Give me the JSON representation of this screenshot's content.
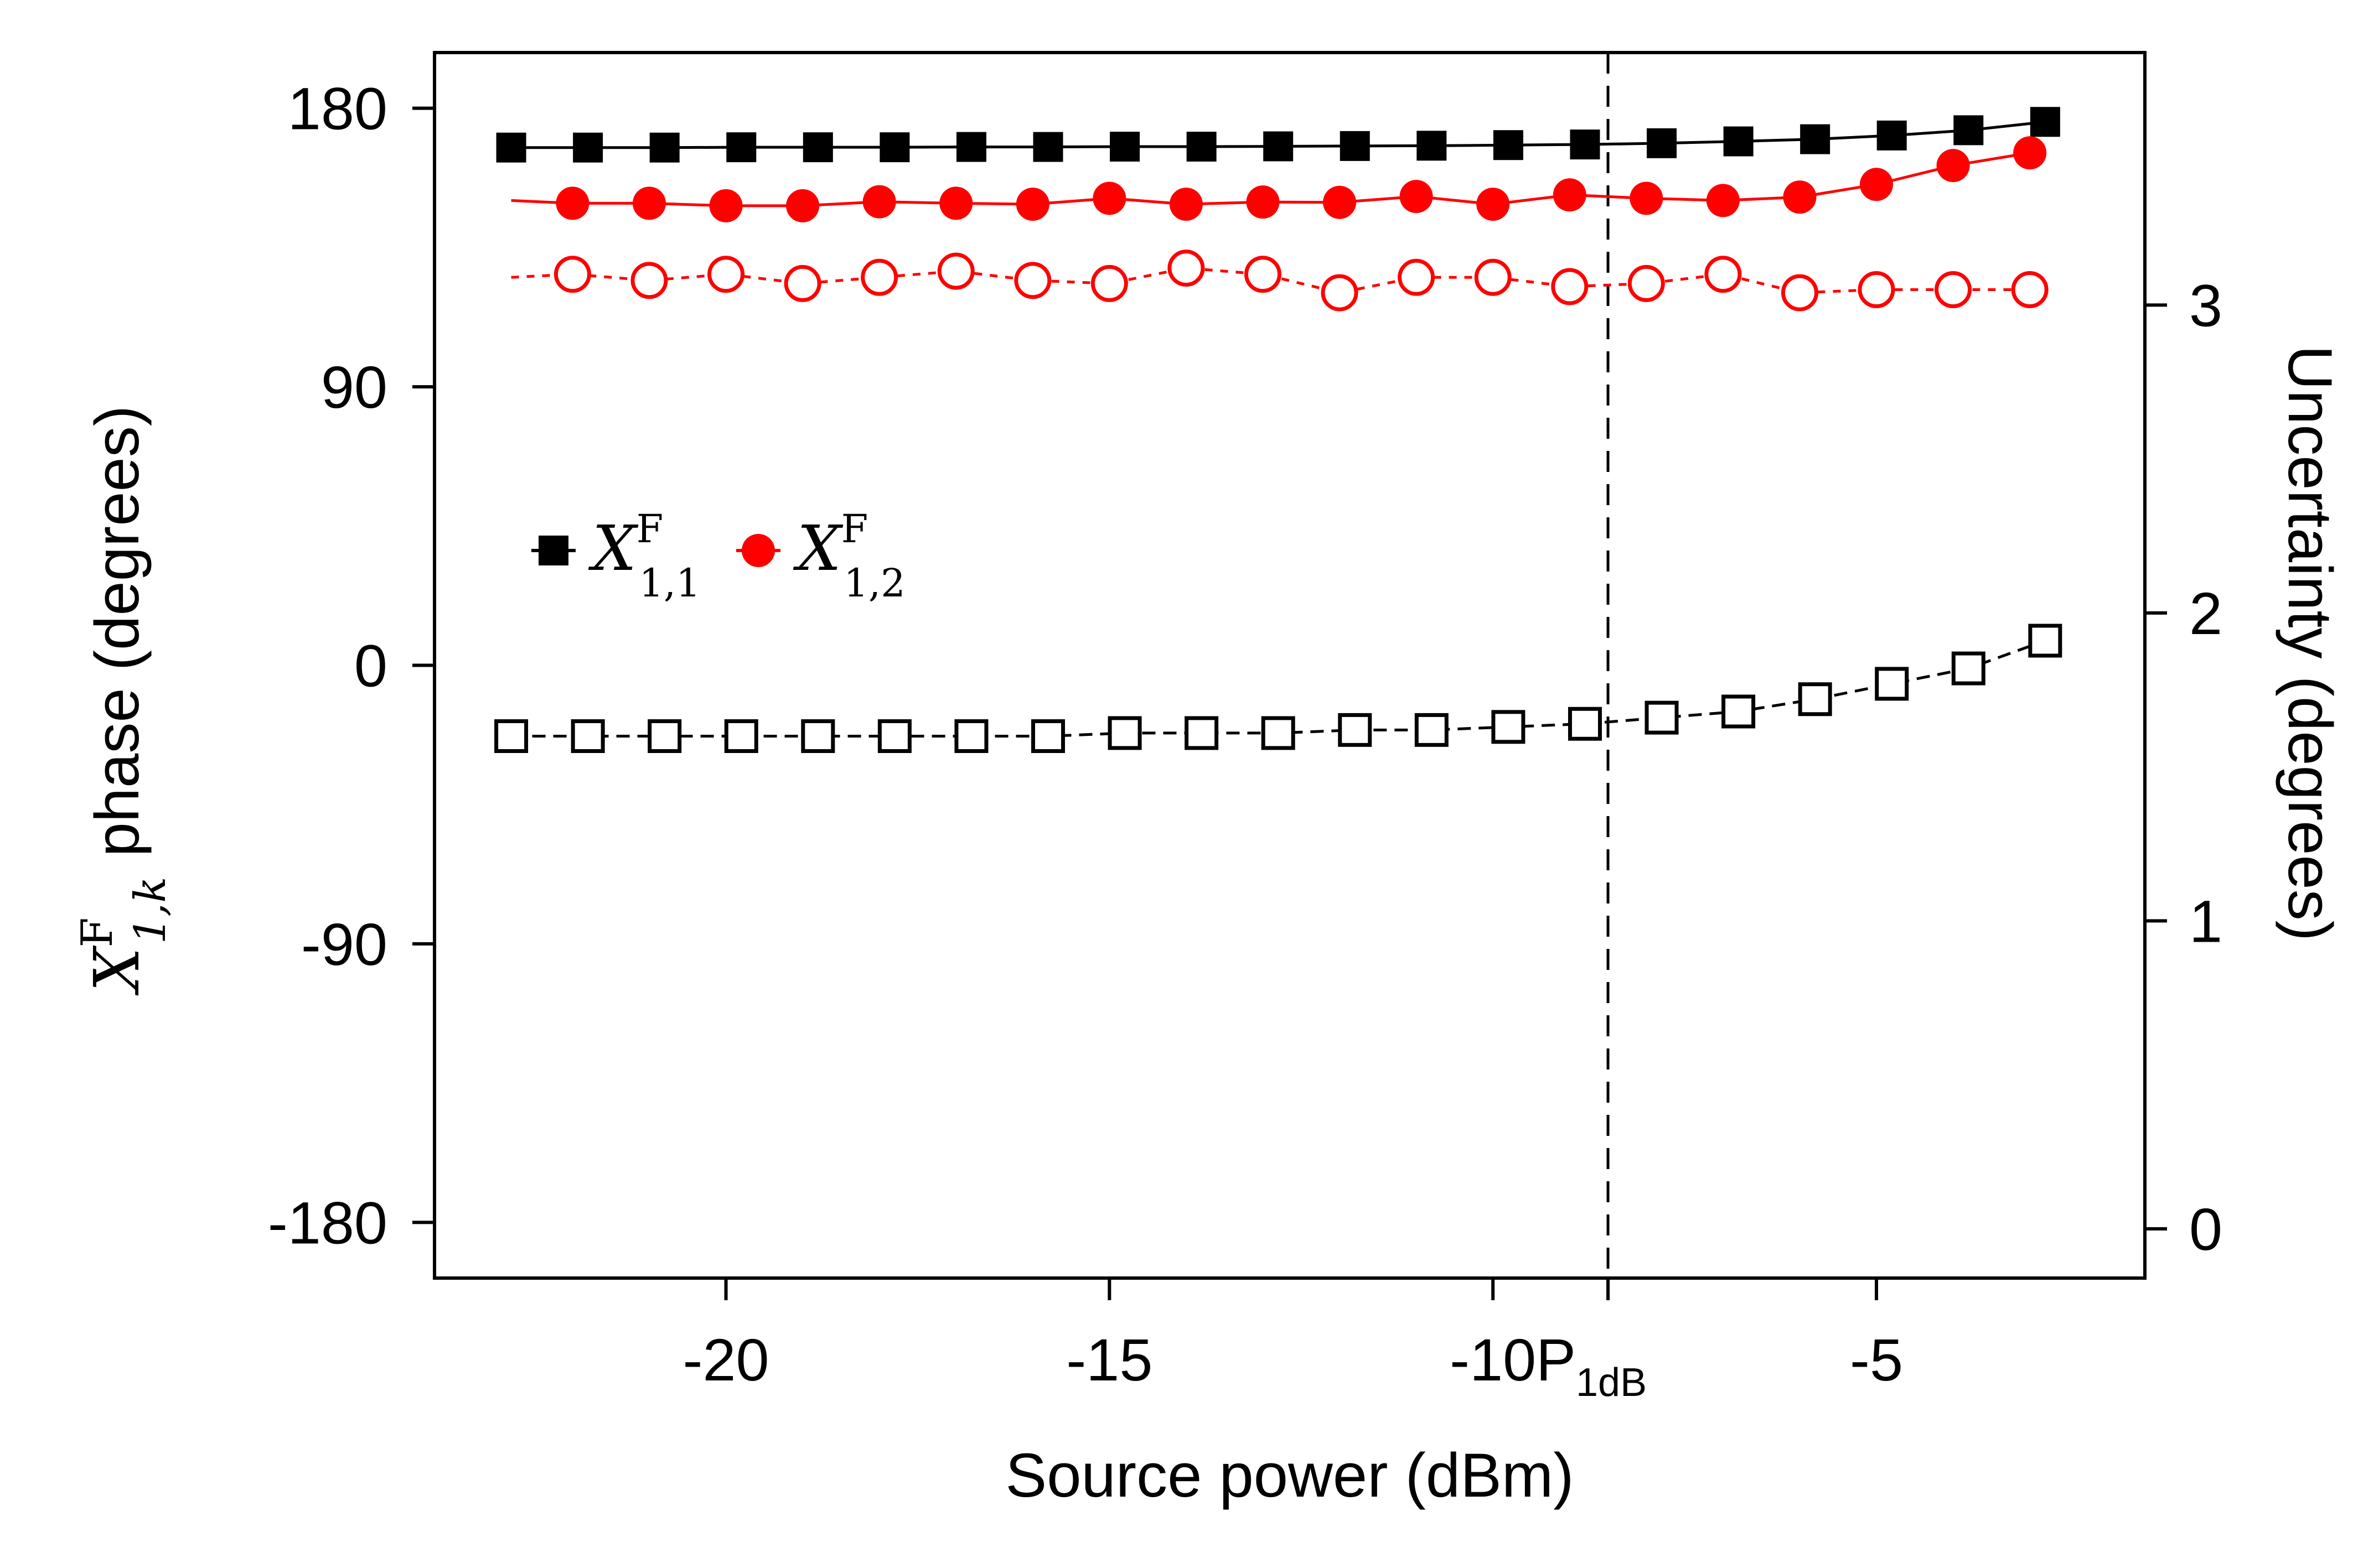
{
  "chart_data": {
    "type": "line",
    "x_label": "Source power (dBm)",
    "y_label_left": {
      "symbol": "X",
      "sup": "F",
      "sub": "1,k",
      "text": "phase (degrees)"
    },
    "y_label_right": "Uncertainty (degrees)",
    "x_range": [
      -23.8,
      -1.5
    ],
    "y_left_range": [
      -198,
      198
    ],
    "y_right_range": [
      -0.16,
      3.82
    ],
    "x_ticks": [
      {
        "value": -20,
        "label": "-20"
      },
      {
        "value": -15,
        "label": "-15"
      },
      {
        "value": -10,
        "label": "-10"
      },
      {
        "value": -5,
        "label": "-5"
      }
    ],
    "p1db_marker": {
      "value": -8.5,
      "label": "P",
      "sub": "1dB"
    },
    "y_left_ticks": [
      {
        "value": 180,
        "label": "180"
      },
      {
        "value": 90,
        "label": "90"
      },
      {
        "value": 0,
        "label": "0"
      },
      {
        "value": -90,
        "label": "-90"
      },
      {
        "value": -180,
        "label": "-180"
      }
    ],
    "y_right_ticks": [
      {
        "value": 3,
        "label": "3"
      },
      {
        "value": 2,
        "label": "2"
      },
      {
        "value": 1,
        "label": "1"
      },
      {
        "value": 0,
        "label": "0"
      }
    ],
    "legend": [
      {
        "symbol": "X",
        "sup": "F",
        "sub": "1,1",
        "color": "#000000",
        "marker": "square-filled"
      },
      {
        "symbol": "X",
        "sup": "F",
        "sub": "1,2",
        "color": "#ff0000",
        "marker": "circle-filled"
      }
    ],
    "legend_position": "left",
    "series": [
      {
        "id": "x11_phase",
        "legend_index": 0,
        "axis": "left",
        "color": "#000000",
        "marker": "square-filled",
        "line": "solid",
        "x": [
          -22.8,
          -21.8,
          -20.8,
          -19.8,
          -18.8,
          -17.8,
          -16.8,
          -15.8,
          -14.8,
          -13.8,
          -12.8,
          -11.8,
          -10.8,
          -9.8,
          -8.8,
          -7.8,
          -6.8,
          -5.8,
          -4.8,
          -3.8,
          -2.8
        ],
        "y": [
          167.3,
          167.3,
          167.3,
          167.4,
          167.4,
          167.4,
          167.5,
          167.5,
          167.6,
          167.6,
          167.7,
          167.8,
          167.9,
          168.1,
          168.3,
          168.7,
          169.3,
          170.0,
          171.2,
          172.9,
          175.6
        ]
      },
      {
        "id": "x12_phase",
        "legend_index": 1,
        "axis": "left",
        "color": "#ff0000",
        "marker": "circle-filled",
        "line": "solid",
        "x": [
          -22.8,
          -22.0,
          -21.0,
          -20.0,
          -19.0,
          -18.0,
          -17.0,
          -16.0,
          -15.0,
          -14.0,
          -13.0,
          -12.0,
          -11.0,
          -10.0,
          -9.0,
          -8.0,
          -7.0,
          -6.0,
          -5.0,
          -4.0,
          -3.0
        ],
        "y": [
          150.2,
          149.3,
          149.3,
          148.5,
          148.5,
          149.8,
          149.3,
          149.0,
          150.9,
          149.0,
          149.7,
          149.6,
          151.5,
          149.0,
          152.0,
          150.9,
          150.2,
          151.3,
          155.4,
          161.5,
          165.6
        ]
      },
      {
        "id": "x11_uncertainty",
        "axis": "right",
        "color": "#000000",
        "marker": "square-open",
        "line": "dashed",
        "x": [
          -22.8,
          -21.8,
          -20.8,
          -19.8,
          -18.8,
          -17.8,
          -16.8,
          -15.8,
          -14.8,
          -13.8,
          -12.8,
          -11.8,
          -10.8,
          -9.8,
          -8.8,
          -7.8,
          -6.8,
          -5.8,
          -4.8,
          -3.8,
          -2.8
        ],
        "y": [
          1.6,
          1.6,
          1.6,
          1.6,
          1.6,
          1.6,
          1.6,
          1.6,
          1.61,
          1.61,
          1.61,
          1.62,
          1.62,
          1.63,
          1.64,
          1.66,
          1.68,
          1.72,
          1.77,
          1.82,
          1.91
        ]
      },
      {
        "id": "x12_uncertainty",
        "axis": "right",
        "color": "#ff0000",
        "marker": "circle-open",
        "line": "dotted",
        "x": [
          -22.8,
          -22.0,
          -21.0,
          -20.0,
          -19.0,
          -18.0,
          -17.0,
          -16.0,
          -15.0,
          -14.0,
          -13.0,
          -12.0,
          -11.0,
          -10.0,
          -9.0,
          -8.0,
          -7.0,
          -6.0,
          -5.0,
          -4.0,
          -3.0
        ],
        "y": [
          3.09,
          3.1,
          3.08,
          3.1,
          3.07,
          3.09,
          3.11,
          3.08,
          3.07,
          3.12,
          3.1,
          3.04,
          3.09,
          3.09,
          3.06,
          3.07,
          3.1,
          3.04,
          3.05,
          3.05,
          3.05
        ]
      }
    ]
  }
}
